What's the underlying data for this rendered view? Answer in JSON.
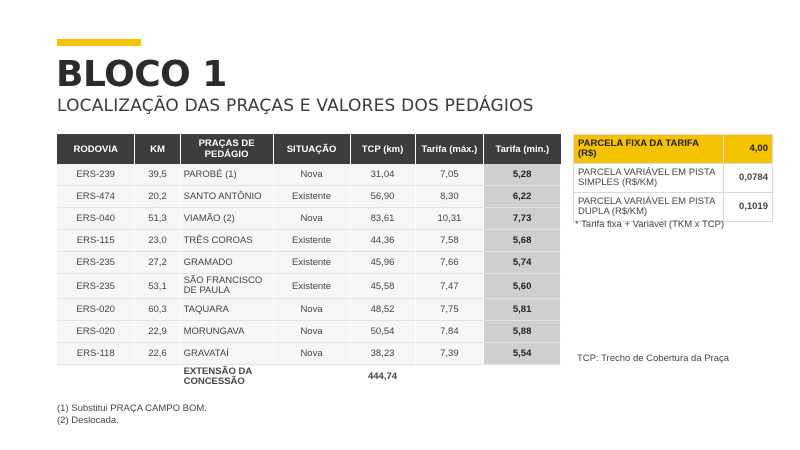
{
  "header": {
    "title": "BLOCO 1",
    "subtitle": "LOCALIZAÇÃO DAS PRAÇAS E VALORES DOS PEDÁGIOS"
  },
  "table": {
    "headers": {
      "rodovia": "RODOVIA",
      "km": "KM",
      "pracas": "PRAÇAS DE PEDÁGIO",
      "situacao": "SITUAÇÃO",
      "tcp": "TCP (km)",
      "tarifa_max": "Tarifa (máx.)",
      "tarifa_min": "Tarifa (min.)"
    },
    "rows": [
      {
        "rodovia": "ERS-239",
        "km": "39,5",
        "praca": "PAROBÉ (1)",
        "situacao": "Nova",
        "tcp": "31,04",
        "tarifa_max": "7,05",
        "tarifa_min": "5,28"
      },
      {
        "rodovia": "ERS-474",
        "km": "20,2",
        "praca": "SANTO ANTÔNIO",
        "situacao": "Existente",
        "tcp": "56,90",
        "tarifa_max": "8,30",
        "tarifa_min": "6,22"
      },
      {
        "rodovia": "ERS-040",
        "km": "51,3",
        "praca": "VIAMÃO (2)",
        "situacao": "Nova",
        "tcp": "83,61",
        "tarifa_max": "10,31",
        "tarifa_min": "7,73"
      },
      {
        "rodovia": "ERS-115",
        "km": "23,0",
        "praca": "TRÊS COROAS",
        "situacao": "Existente",
        "tcp": "44,36",
        "tarifa_max": "7,58",
        "tarifa_min": "5,68"
      },
      {
        "rodovia": "ERS-235",
        "km": "27,2",
        "praca": "GRAMADO",
        "situacao": "Existente",
        "tcp": "45,96",
        "tarifa_max": "7,66",
        "tarifa_min": "5,74"
      },
      {
        "rodovia": "ERS-235",
        "km": "53,1",
        "praca": "SÃO FRANCISCO DE PAULA",
        "situacao": "Existente",
        "tcp": "45,58",
        "tarifa_max": "7,47",
        "tarifa_min": "5,60"
      },
      {
        "rodovia": "ERS-020",
        "km": "60,3",
        "praca": "TAQUARA",
        "situacao": "Nova",
        "tcp": "48,52",
        "tarifa_max": "7,75",
        "tarifa_min": "5,81"
      },
      {
        "rodovia": "ERS-020",
        "km": "22,9",
        "praca": "MORUNGAVA",
        "situacao": "Nova",
        "tcp": "50,54",
        "tarifa_max": "7,84",
        "tarifa_min": "5,88"
      },
      {
        "rodovia": "ERS-118",
        "km": "22,6",
        "praca": "GRAVATAÍ",
        "situacao": "Nova",
        "tcp": "38,23",
        "tarifa_max": "7,39",
        "tarifa_min": "5,54"
      }
    ],
    "footer": {
      "label": "EXTENSÃO DA CONCESSÃO",
      "value": "444,74"
    }
  },
  "parcelas": {
    "fixa": {
      "label": "PARCELA FIXA DA TARIFA (R$)",
      "value": "4,00"
    },
    "simples": {
      "label": "PARCELA VARIÁVEL EM PISTA SIMPLES (R$/KM)",
      "value": "0,0784"
    },
    "dupla": {
      "label": "PARCELA VARIÁVEL EM PISTA DUPLA (R$/KM)",
      "value": "0,1019"
    },
    "note": "* Tarifa fixa + Variável (TKM x TCP)"
  },
  "notes": {
    "tcp": "TCP: Trecho de Cobertura da Praça",
    "foot1": "(1) Substitui PRAÇA CAMPO BOM.",
    "foot2": "(2) Deslocada."
  },
  "colors": {
    "accent": "#f5c200",
    "header_bg": "#3d3d3d",
    "tarifa_min_bg": "#cfcfcf"
  }
}
